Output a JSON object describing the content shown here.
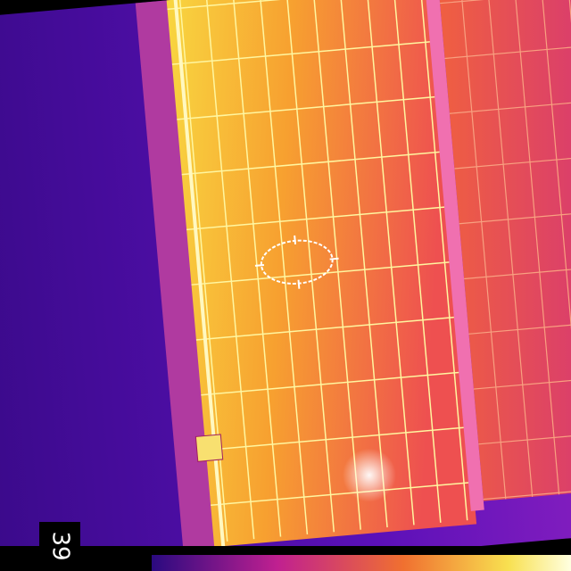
{
  "overlay": {
    "temperature_label": "39"
  }
}
